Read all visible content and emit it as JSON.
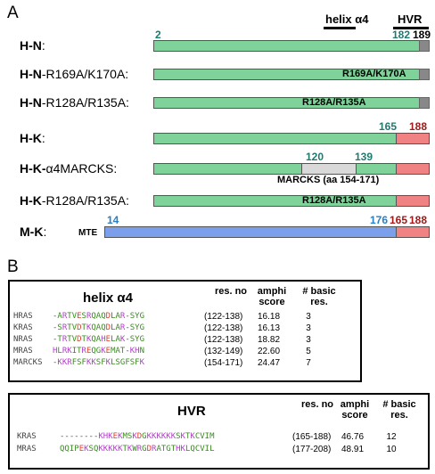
{
  "panel_a": {
    "letter": "A",
    "helix_header": "helix α4",
    "hvr_header": "HVR",
    "rows": [
      {
        "bold": "H-N",
        "suffix": ":"
      },
      {
        "bold": "H-N",
        "suffix": "-R169A/K170A:"
      },
      {
        "bold": "H-N",
        "suffix": "-R128A/R135A:"
      },
      {
        "bold": "H-K",
        "suffix": ":"
      },
      {
        "bold": "H-K-",
        "suffix": "α4MARCKS:"
      },
      {
        "bold": "H-K",
        "suffix": "-R128A/R135A:"
      },
      {
        "bold": "M-K",
        "suffix": ":"
      }
    ],
    "labels": {
      "hn_start": "2",
      "hn_182": "182",
      "hn_189": "189",
      "r169": "R169A/K170A",
      "r128_hn": "R128A/R135A",
      "hk_165": "165",
      "hk_188": "188",
      "m_120": "120",
      "m_139": "139",
      "marcks": "MARCKS (aa 154-171)",
      "r128_hk": "R128A/R135A",
      "mk_14": "14",
      "mk_176": "176",
      "mk_165": "165",
      "mk_188": "188",
      "mte": "MTE"
    }
  },
  "panel_b": {
    "letter": "B",
    "helix_table": {
      "title": "helix α4",
      "col_resno": "res. no",
      "col_amphi": "amphi\nscore",
      "col_basic": "# basic\nres.",
      "rows": [
        {
          "name": "HRAS",
          "seq": "-ARTVESRQAQDLAR-SYG",
          "resno": "(122-138)",
          "amphi": "16.18",
          "basic": "3"
        },
        {
          "name": "KRAS",
          "seq": "-SRTVDTKQAQDLAR-SYG",
          "resno": "(122-138)",
          "amphi": "16.13",
          "basic": "3"
        },
        {
          "name": "NRAS",
          "seq": "-TRTVDTKQAHELAK-SYG",
          "resno": "(122-138)",
          "amphi": "18.82",
          "basic": "3"
        },
        {
          "name": "MRAS",
          "seq": "HLRKITREQGKEMAT-KHN",
          "resno": "(132-149)",
          "amphi": "22.60",
          "basic": "5"
        },
        {
          "name": "MARCKS",
          "seq": "-KKRFSFKKSFKLSGFSFK",
          "resno": "(154-171)",
          "amphi": "24.47",
          "basic": "7"
        }
      ]
    },
    "hvr_table": {
      "title": "HVR",
      "col_resno": "res. no",
      "col_amphi": "amphi\nscore",
      "col_basic": "# basic\nres.",
      "rows": [
        {
          "name": "KRAS",
          "seq": "--------KHKEKMSKDGKKKKKKSKTKCVIM",
          "resno": "(165-188)",
          "amphi": "46.76",
          "basic": "12"
        },
        {
          "name": "MRAS",
          "seq": "QQIPEKSQKKKKKTKWRGDRATGTHKLQCVIL",
          "resno": "(177-208)",
          "amphi": "48.91",
          "basic": "10"
        }
      ]
    }
  },
  "colors": {
    "green": "#7fd39a",
    "red": "#f08283",
    "blue": "#7b9fea",
    "grey": "#888888",
    "teal": "#1f7a70",
    "dark_red": "#a01a1a",
    "blue_text": "#2a7fc2",
    "aa_basic": "#b040c8",
    "aa_acidic": "#e0402a",
    "aa_hydrophobic": "#3a8a20",
    "aa_polar": "#888888"
  }
}
